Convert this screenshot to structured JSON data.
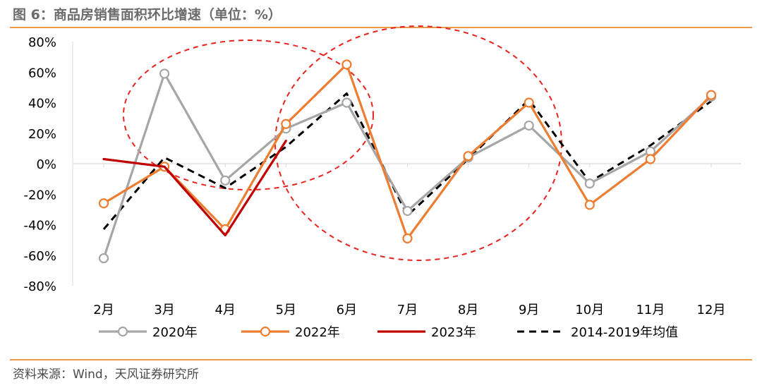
{
  "figure": {
    "title": "图 6：商品房销售面积环比增速（单位：%）",
    "source": "资料来源：Wind，天风证券研究所"
  },
  "chart_data": {
    "type": "line",
    "categories": [
      "2月",
      "3月",
      "4月",
      "5月",
      "6月",
      "7月",
      "8月",
      "9月",
      "10月",
      "11月",
      "12月"
    ],
    "ylim": [
      -80,
      80
    ],
    "yticks": [
      80,
      60,
      40,
      20,
      0,
      -20,
      -40,
      -60,
      -80
    ],
    "ytick_labels": [
      "80%",
      "60%",
      "40%",
      "20%",
      "0%",
      "-20%",
      "-40%",
      "-60%",
      "-80%"
    ],
    "grid": false,
    "legend_position": "bottom",
    "series": [
      {
        "name": "2020年",
        "color": "#a6a6a6",
        "marker": "circle",
        "dash": "solid",
        "values": [
          -62,
          59,
          -11,
          23,
          40,
          -31,
          4,
          25,
          -13,
          8,
          44
        ]
      },
      {
        "name": "2022年",
        "color": "#ed7d31",
        "marker": "circle",
        "dash": "solid",
        "values": [
          -26,
          -2,
          -43,
          26,
          65,
          -49,
          5,
          40,
          -27,
          3,
          45
        ]
      },
      {
        "name": "2023年",
        "color": "#c00000",
        "marker": "none",
        "dash": "solid",
        "values": [
          3,
          -2,
          -47,
          15,
          null,
          null,
          null,
          null,
          null,
          null,
          null
        ]
      },
      {
        "name": "2014-2019年均值",
        "color": "#000000",
        "marker": "none",
        "dash": "dashed",
        "values": [
          -43,
          4,
          -16,
          11,
          46,
          -34,
          3,
          42,
          -12,
          12,
          41
        ]
      }
    ]
  }
}
